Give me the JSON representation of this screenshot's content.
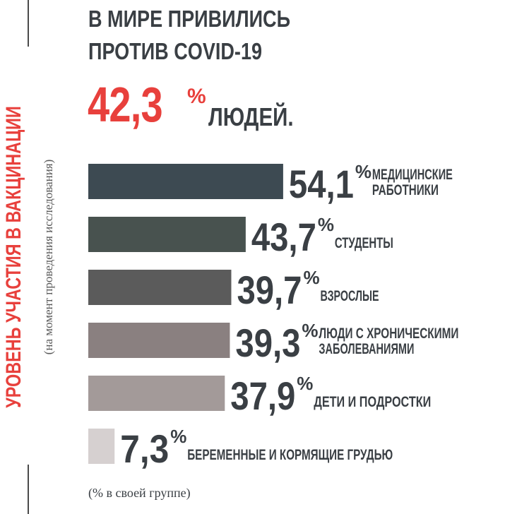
{
  "header": {
    "line1": "В МИРЕ ПРИВИЛИСЬ",
    "line2": "ПРОТИВ COVID-19",
    "value": "42,3",
    "percent_sign": "%",
    "suffix": "ЛЮДЕЙ."
  },
  "side": {
    "title": "УРОВЕНЬ УЧАСТИЯ В ВАКЦИНАЦИИ",
    "subtitle": "(на момент проведения исследования)"
  },
  "footnote": "(% в своей группе)",
  "chart_data": {
    "type": "bar",
    "orientation": "horizontal",
    "unit": "%",
    "xlim": [
      0,
      60
    ],
    "grid": false,
    "legend": "none",
    "categories": [
      "МЕДИЦИНСКИЕ РАБОТНИКИ",
      "СТУДЕНТЫ",
      "ВЗРОСЛЫЕ",
      "ЛЮДИ С ХРОНИЧЕСКИМИ ЗАБОЛЕВАНИЯМИ",
      "ДЕТИ И ПОДРОСТКИ",
      "БЕРЕМЕННЫЕ И КОРМЯЩИЕ ГРУДЬЮ"
    ],
    "labels": [
      [
        "МЕДИЦИНСКИЕ",
        "РАБОТНИКИ"
      ],
      [
        "СТУДЕНТЫ"
      ],
      [
        "ВЗРОСЛЫЕ"
      ],
      [
        "ЛЮДИ С ХРОНИЧЕСКИМИ",
        "ЗАБОЛЕВАНИЯМИ"
      ],
      [
        "ДЕТИ И ПОДРОСТКИ"
      ],
      [
        "БЕРЕМЕННЫЕ И КОРМЯЩИЕ ГРУДЬЮ"
      ]
    ],
    "values": [
      54.1,
      43.7,
      39.7,
      39.3,
      37.9,
      7.3
    ],
    "value_labels": [
      "54,1",
      "43,7",
      "39,7",
      "39,3",
      "37,9",
      "7,3"
    ],
    "colors": [
      "#3d4a52",
      "#48524f",
      "#5b5b5b",
      "#8a8080",
      "#a39a99",
      "#d6d0d0"
    ],
    "label_color": "#3a3f44"
  }
}
